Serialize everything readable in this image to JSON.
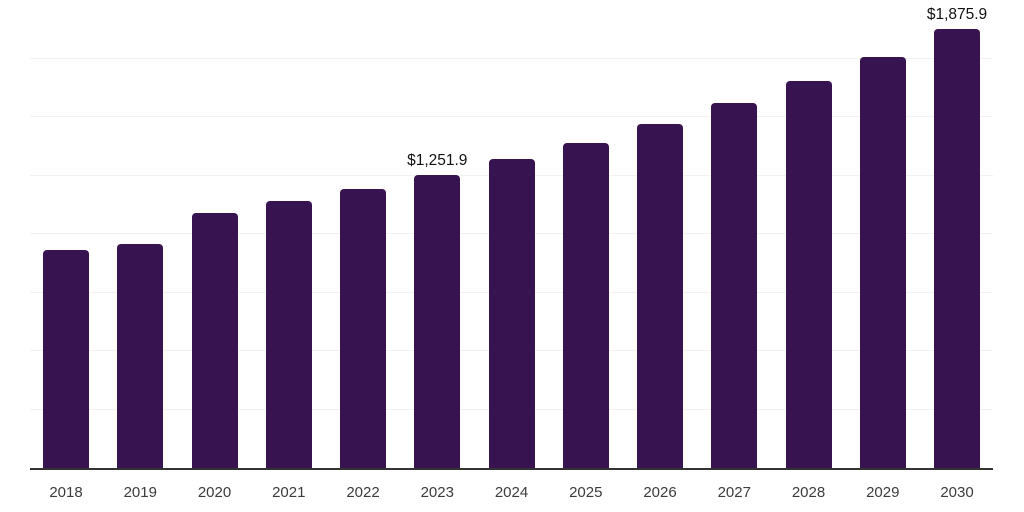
{
  "chart_data": {
    "type": "bar",
    "title": "",
    "xlabel": "",
    "ylabel": "",
    "categories": [
      "2018",
      "2019",
      "2020",
      "2021",
      "2022",
      "2023",
      "2024",
      "2025",
      "2026",
      "2027",
      "2028",
      "2029",
      "2030"
    ],
    "values": [
      931,
      958,
      1088,
      1140,
      1194,
      1251.9,
      1319,
      1391,
      1472,
      1559,
      1656,
      1756,
      1875.9
    ],
    "point_labels": [
      "",
      "",
      "",
      "",
      "",
      "$1,251.9",
      "",
      "",
      "",
      "",
      "",
      "",
      "$1,875.9"
    ],
    "ylim": [
      0,
      2000
    ],
    "gridline_step": 250,
    "grid": "horizontal-only",
    "legend": "none",
    "y_axis_tick_labels_visible": false,
    "colors": {
      "bar": "#371350",
      "axis_line": "#333333",
      "gridline": "#f1f1f3",
      "tick_label": "#3c3c3c",
      "data_label": "#111111",
      "background": "#ffffff"
    }
  }
}
